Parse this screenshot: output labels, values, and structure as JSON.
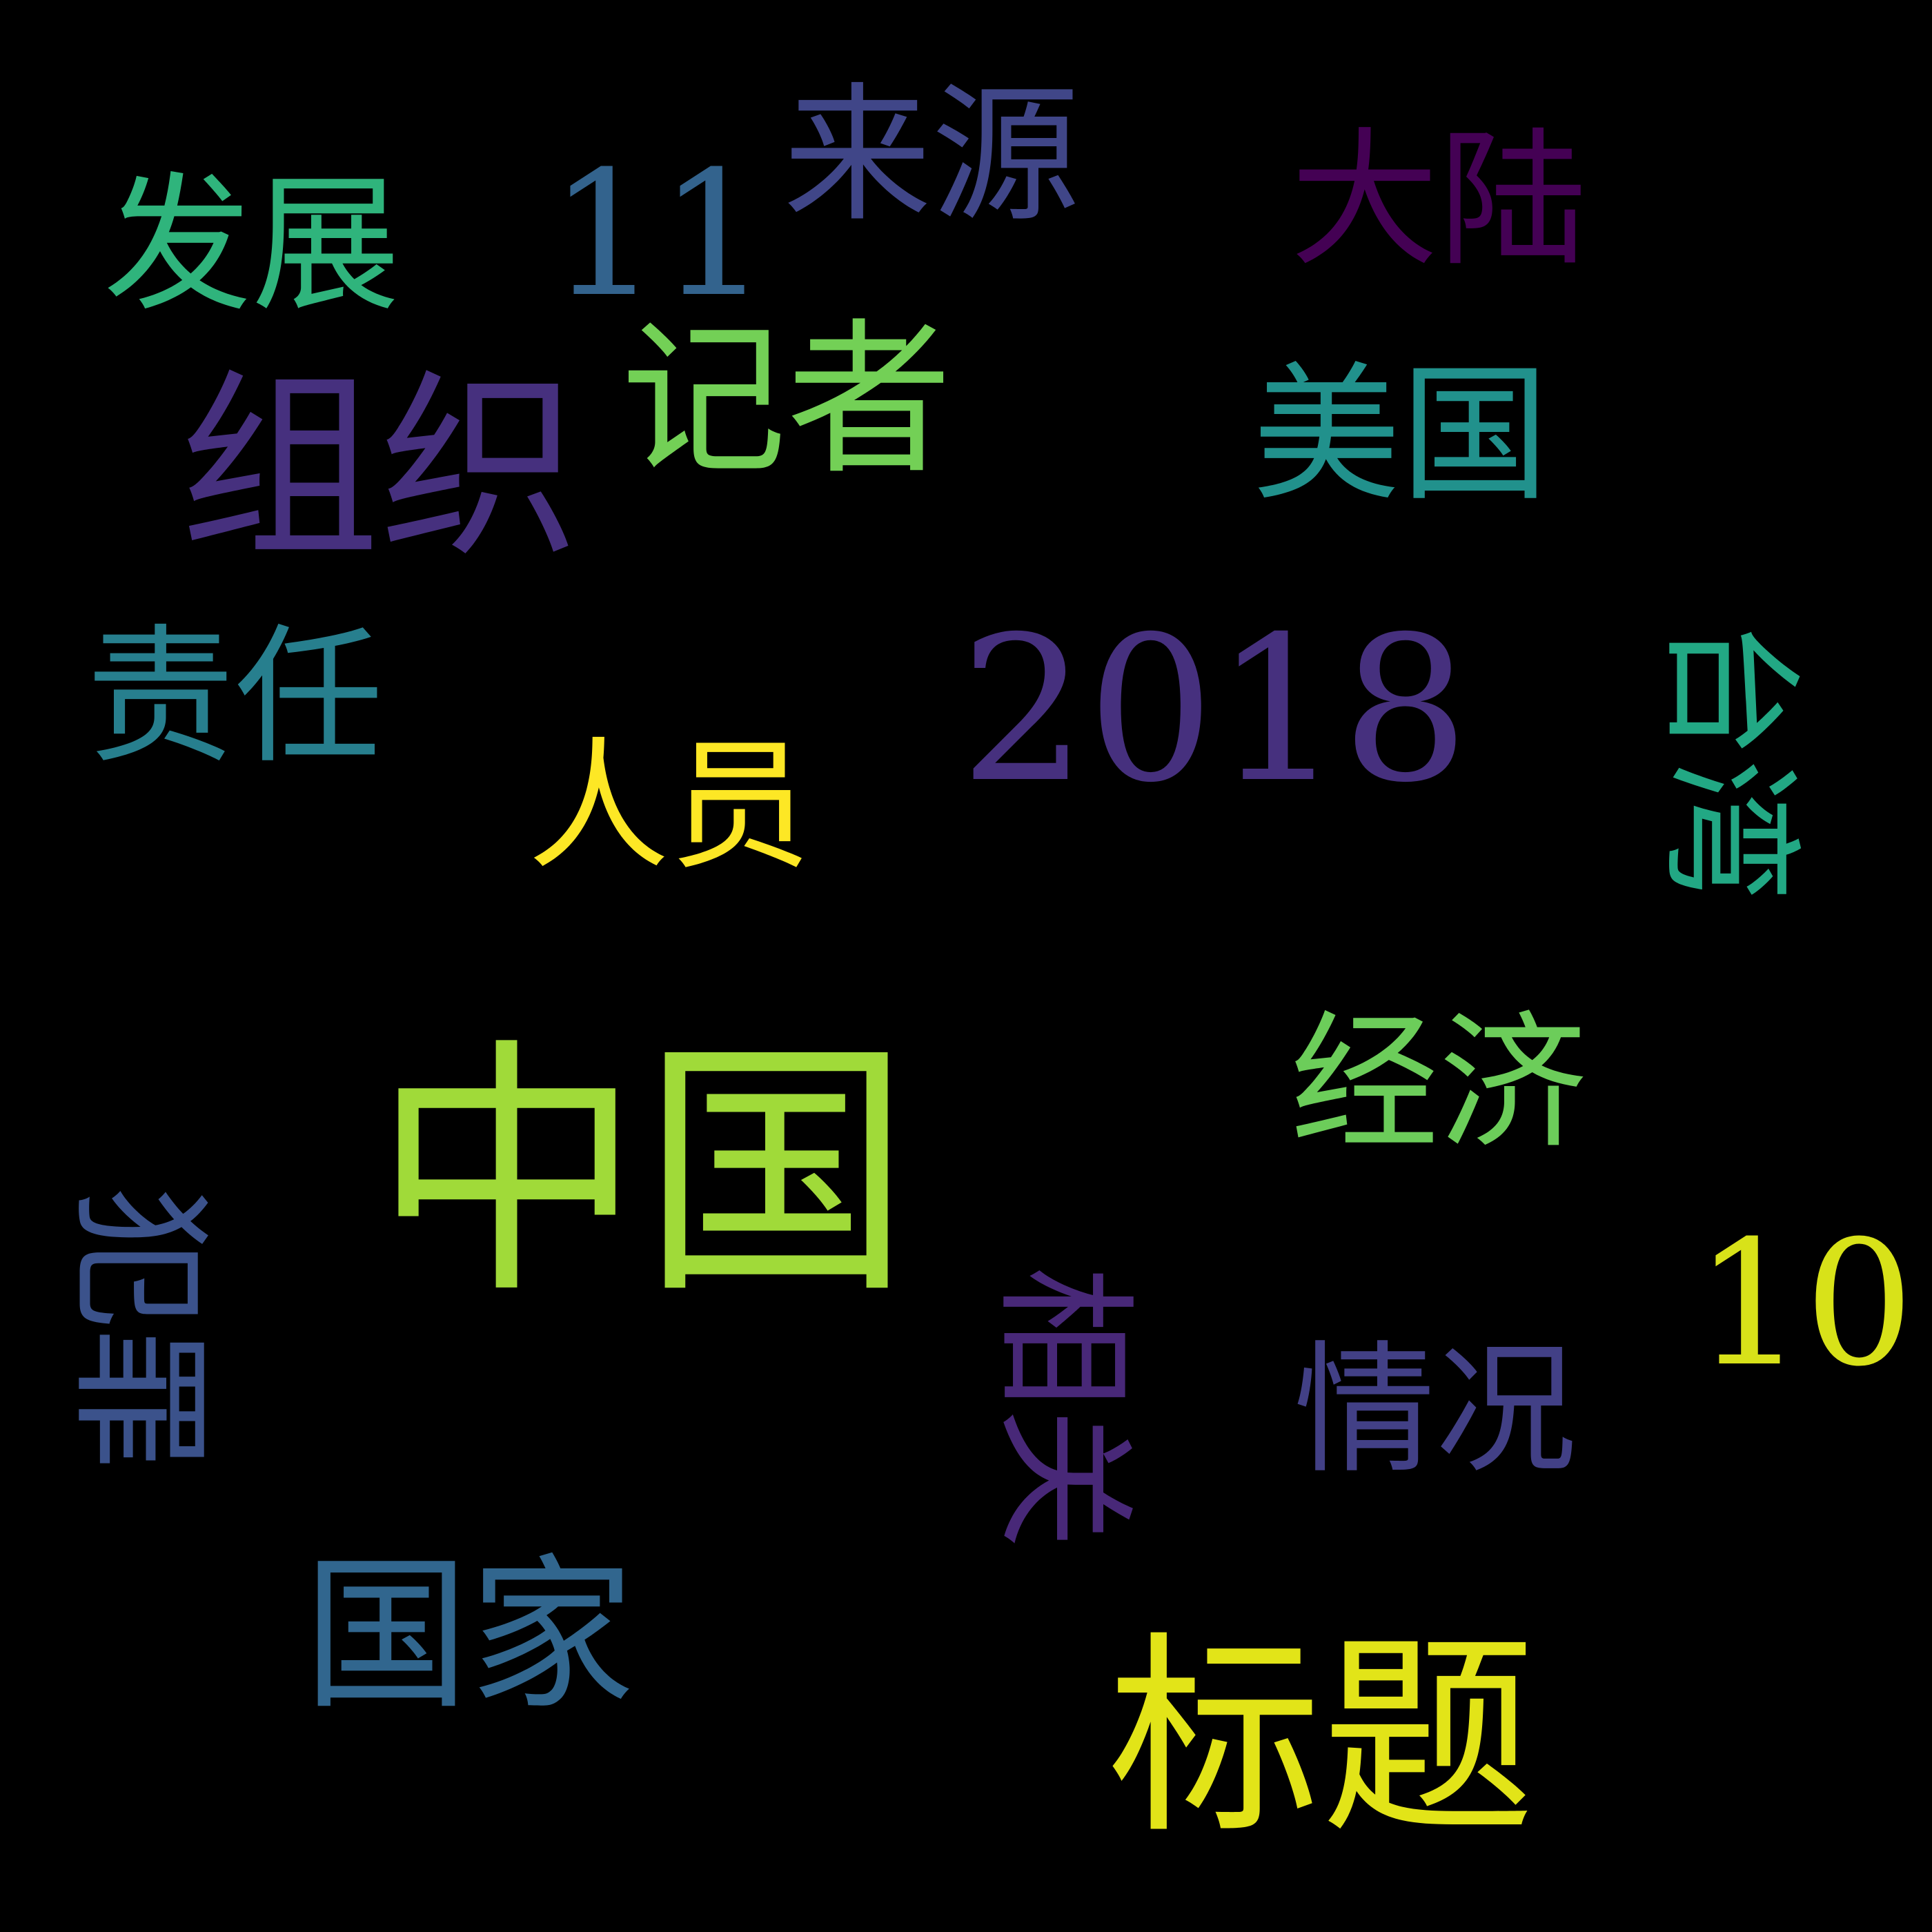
{
  "words": {
    "zhongguo": {
      "text": "中国",
      "color": "#a0da39"
    },
    "biaoti": {
      "text": "标题",
      "color": "#e2e418"
    },
    "zuzhi": {
      "text": "组织",
      "color": "#46307e"
    },
    "y2018": {
      "text": "2018",
      "color": "#46307e"
    },
    "jizhe": {
      "text": "记者",
      "color": "#73d056"
    },
    "guojia": {
      "text": "国家",
      "color": "#31668e"
    },
    "meiguo": {
      "text": "美国",
      "color": "#21918c"
    },
    "renyuan": {
      "text": "人员",
      "color": "#fde725"
    },
    "jingji": {
      "text": "经济",
      "color": "#6ccd5a"
    },
    "qingkuang": {
      "text": "情况",
      "color": "#424086"
    },
    "laiyuan": {
      "text": "来源",
      "color": "#404688"
    },
    "dalu": {
      "text": "大陆",
      "color": "#440154"
    },
    "fazhan": {
      "text": "发展",
      "color": "#2fb47c"
    },
    "zeren": {
      "text": "责任",
      "color": "#277f8e"
    },
    "n11": {
      "text": "11",
      "color": "#33638d"
    },
    "n10": {
      "text": "10",
      "color": "#d8e219"
    },
    "taiwan": {
      "text": "台湾",
      "color": "#22a884"
    },
    "fanzui": {
      "text": "犯罪",
      "color": "#3b528b"
    },
    "xiangguan": {
      "text": "相关",
      "color": "#482878"
    }
  }
}
